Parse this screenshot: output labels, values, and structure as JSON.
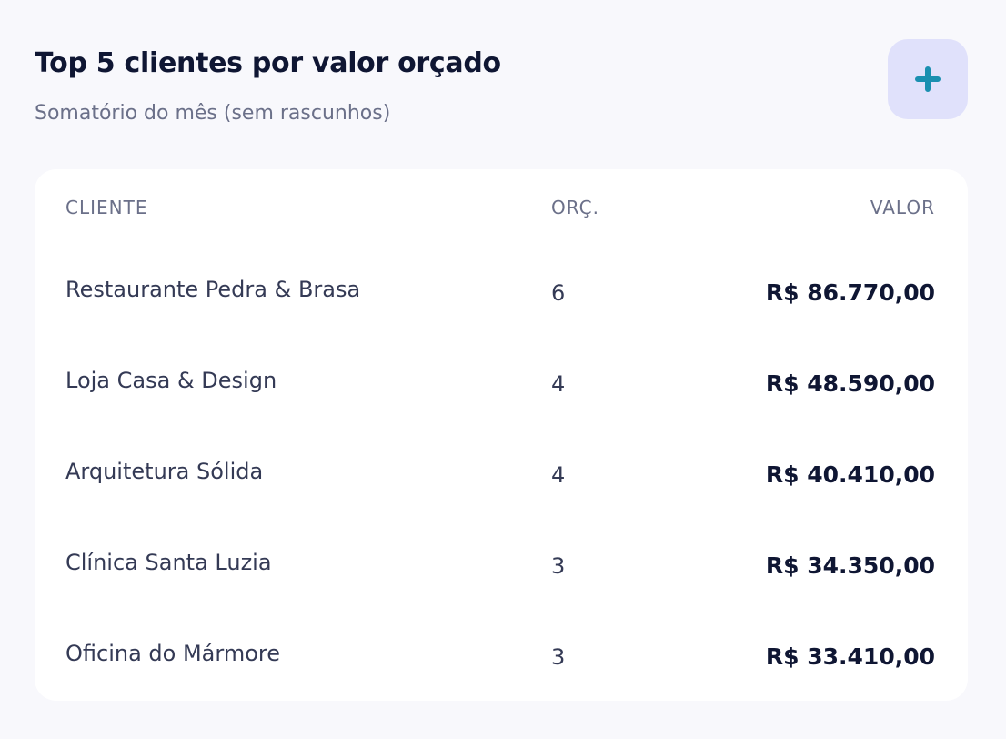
{
  "header": {
    "title": "Top 5 clientes por valor orçado",
    "subtitle": "Somatório do mês (sem rascunhos)"
  },
  "table": {
    "columns": [
      "CLIENTE",
      "ORÇ.",
      "VALOR"
    ],
    "rows": [
      [
        "Restaurante Pedra & Brasa",
        "6",
        "R$ 86.770,00"
      ],
      [
        "Loja Casa & Design",
        "4",
        "R$ 48.590,00"
      ],
      [
        "Arquitetura Sólida",
        "4",
        "R$ 40.410,00"
      ],
      [
        "Clínica Santa Luzia",
        "3",
        "R$ 34.350,00"
      ],
      [
        "Oficina do Mármore",
        "3",
        "R$ 33.410,00"
      ]
    ]
  }
}
